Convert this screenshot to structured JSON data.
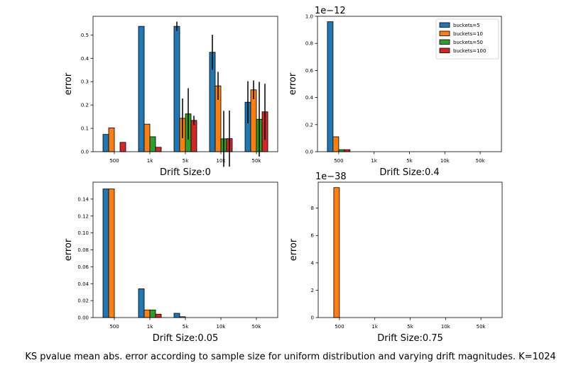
{
  "caption": "KS pvalue mean abs. error according to sample size for uniform distribution and varying drift magnitudes. K=1024",
  "series_colors": [
    "#1f77b4",
    "#ff7f0e",
    "#2ca02c",
    "#d62728"
  ],
  "chart_data": [
    {
      "type": "bar",
      "title": "",
      "xlabel": "Drift Size:0",
      "ylabel": "error",
      "offset_text": "",
      "categories": [
        "500",
        "1k",
        "5k",
        "10k",
        "50k"
      ],
      "ylim": [
        0,
        0.58
      ],
      "yticks": [
        0.0,
        0.1,
        0.2,
        0.3,
        0.4,
        0.5
      ],
      "ytick_labels": [
        "0.0",
        "0.1",
        "0.2",
        "0.3",
        "0.4",
        "0.5"
      ],
      "grid": false,
      "series": [
        {
          "values": [
            0.074,
            0.537,
            0.537,
            0.426,
            0.212
          ],
          "errors": [
            0,
            0,
            0.02,
            0.075,
            0.09
          ]
        },
        {
          "values": [
            0.102,
            0.118,
            0.143,
            0.282,
            0.265
          ],
          "errors": [
            0,
            0,
            0.085,
            0.06,
            0.04
          ]
        },
        {
          "values": [
            0.0,
            0.064,
            0.162,
            0.055,
            0.139
          ],
          "errors": [
            0,
            0,
            0.11,
            0.12,
            0.16
          ]
        },
        {
          "values": [
            0.04,
            0.019,
            0.134,
            0.056,
            0.171
          ],
          "errors": [
            0,
            0,
            0.02,
            0.12,
            0.12
          ]
        }
      ]
    },
    {
      "type": "bar",
      "title": "",
      "xlabel": "Drift Size:0.4",
      "ylabel": "error",
      "offset_text": "1e−12",
      "categories": [
        "500",
        "1k",
        "5k",
        "10k",
        "50k"
      ],
      "ylim": [
        0,
        1.0
      ],
      "yticks": [
        0.0,
        0.2,
        0.4,
        0.6,
        0.8,
        1.0
      ],
      "ytick_labels": [
        "0.0",
        "0.2",
        "0.4",
        "0.6",
        "0.8",
        "1.0"
      ],
      "grid": false,
      "legend": {
        "position": "top-right",
        "entries": [
          "buckets=5",
          "buckets=10",
          "buckets=50",
          "buckets=100"
        ]
      },
      "series": [
        {
          "name": "buckets=5",
          "values": [
            0.96,
            0.0,
            0.0,
            0.0,
            0.0
          ]
        },
        {
          "name": "buckets=10",
          "values": [
            0.11,
            0.0,
            0.0,
            0.0,
            0.0
          ]
        },
        {
          "name": "buckets=50",
          "values": [
            0.015,
            0.0,
            0.0,
            0.0,
            0.0
          ]
        },
        {
          "name": "buckets=100",
          "values": [
            0.015,
            0.0,
            0.0,
            0.0,
            0.0
          ]
        }
      ]
    },
    {
      "type": "bar",
      "title": "",
      "xlabel": "Drift Size:0.05",
      "ylabel": "error",
      "offset_text": "",
      "categories": [
        "500",
        "1k",
        "5k",
        "10k",
        "50k"
      ],
      "ylim": [
        0,
        0.16
      ],
      "yticks": [
        0.0,
        0.02,
        0.04,
        0.06,
        0.08,
        0.1,
        0.12,
        0.14
      ],
      "ytick_labels": [
        "0.00",
        "0.02",
        "0.04",
        "0.06",
        "0.08",
        "0.10",
        "0.12",
        "0.14"
      ],
      "grid": false,
      "series": [
        {
          "values": [
            0.152,
            0.034,
            0.005,
            0.0,
            0.0
          ]
        },
        {
          "values": [
            0.152,
            0.009,
            0.001,
            0.0,
            0.0
          ]
        },
        {
          "values": [
            0.0,
            0.009,
            0.0,
            0.0,
            0.0
          ]
        },
        {
          "values": [
            0.0,
            0.004,
            0.0,
            0.0,
            0.0
          ]
        }
      ]
    },
    {
      "type": "bar",
      "title": "",
      "xlabel": "Drift Size:0.75",
      "ylabel": "error",
      "offset_text": "1e−38",
      "categories": [
        "500",
        "1k",
        "5k",
        "10k",
        "50k"
      ],
      "ylim": [
        0,
        9.9
      ],
      "yticks": [
        0,
        2,
        4,
        6,
        8
      ],
      "ytick_labels": [
        "0",
        "2",
        "4",
        "6",
        "8"
      ],
      "grid": false,
      "series": [
        {
          "values": [
            0.0,
            0.0,
            0.0,
            0.0,
            0.0
          ]
        },
        {
          "values": [
            9.5,
            0.0,
            0.0,
            0.0,
            0.0
          ]
        },
        {
          "values": [
            0.0,
            0.0,
            0.0,
            0.0,
            0.0
          ]
        },
        {
          "values": [
            0.0,
            0.0,
            0.0,
            0.0,
            0.0
          ]
        }
      ]
    }
  ]
}
